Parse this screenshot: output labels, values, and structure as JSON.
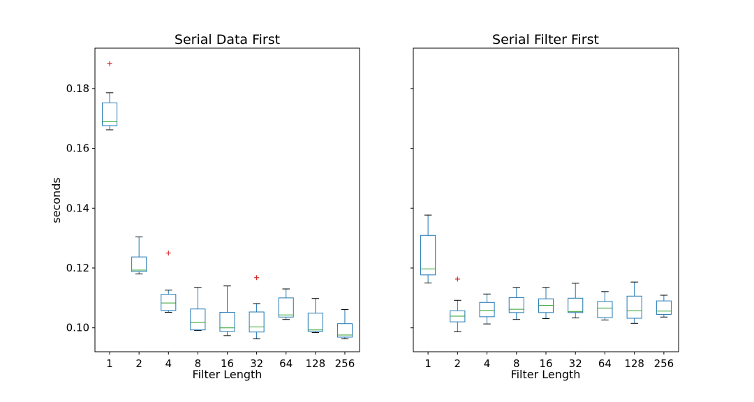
{
  "chart_data": [
    {
      "type": "box",
      "title": "Serial Data First",
      "xlabel": "Filter Length",
      "ylabel": "seconds",
      "categories": [
        "1",
        "2",
        "4",
        "8",
        "16",
        "32",
        "64",
        "128",
        "256"
      ],
      "ylim": [
        0.092,
        0.1935
      ],
      "yticks": [
        "0.10",
        "0.12",
        "0.14",
        "0.16",
        "0.18"
      ],
      "box_color": "#1f77b4",
      "median_color": "#2ca02c",
      "outlier_color": "#d62728",
      "boxes": [
        {
          "whislo": 0.1662,
          "q1": 0.1676,
          "med": 0.1689,
          "q3": 0.1752,
          "whishi": 0.1786,
          "fliers": [
            0.1883
          ]
        },
        {
          "whislo": 0.118,
          "q1": 0.1188,
          "med": 0.1193,
          "q3": 0.1237,
          "whishi": 0.1304,
          "fliers": []
        },
        {
          "whislo": 0.1052,
          "q1": 0.1058,
          "med": 0.1083,
          "q3": 0.1112,
          "whishi": 0.1126,
          "fliers": [
            0.125
          ]
        },
        {
          "whislo": 0.0991,
          "q1": 0.0993,
          "med": 0.1018,
          "q3": 0.1063,
          "whishi": 0.1135,
          "fliers": []
        },
        {
          "whislo": 0.0974,
          "q1": 0.0988,
          "med": 0.1,
          "q3": 0.1052,
          "whishi": 0.114,
          "fliers": []
        },
        {
          "whislo": 0.0963,
          "q1": 0.0986,
          "med": 0.1003,
          "q3": 0.1053,
          "whishi": 0.1081,
          "fliers": [
            0.1168
          ]
        },
        {
          "whislo": 0.1028,
          "q1": 0.1036,
          "med": 0.1043,
          "q3": 0.11,
          "whishi": 0.113,
          "fliers": []
        },
        {
          "whislo": 0.0984,
          "q1": 0.0988,
          "med": 0.0993,
          "q3": 0.1049,
          "whishi": 0.1098,
          "fliers": []
        },
        {
          "whislo": 0.0963,
          "q1": 0.0969,
          "med": 0.0976,
          "q3": 0.1014,
          "whishi": 0.1061,
          "fliers": []
        }
      ]
    },
    {
      "type": "box",
      "title": "Serial Filter First",
      "xlabel": "Filter Length",
      "ylabel": "",
      "categories": [
        "1",
        "2",
        "4",
        "8",
        "16",
        "32",
        "64",
        "128",
        "256"
      ],
      "ylim": [
        0.092,
        0.1935
      ],
      "yticks": [
        "",
        "",
        "",
        "",
        ""
      ],
      "box_color": "#1f77b4",
      "median_color": "#2ca02c",
      "outlier_color": "#d62728",
      "boxes": [
        {
          "whislo": 0.115,
          "q1": 0.1177,
          "med": 0.1197,
          "q3": 0.1309,
          "whishi": 0.1377,
          "fliers": []
        },
        {
          "whislo": 0.0987,
          "q1": 0.102,
          "med": 0.1039,
          "q3": 0.1057,
          "whishi": 0.1092,
          "fliers": [
            0.1163
          ]
        },
        {
          "whislo": 0.1013,
          "q1": 0.1037,
          "med": 0.1058,
          "q3": 0.1085,
          "whishi": 0.1113,
          "fliers": []
        },
        {
          "whislo": 0.1028,
          "q1": 0.1051,
          "med": 0.1062,
          "q3": 0.1101,
          "whishi": 0.1135,
          "fliers": []
        },
        {
          "whislo": 0.1031,
          "q1": 0.1051,
          "med": 0.1075,
          "q3": 0.1097,
          "whishi": 0.1135,
          "fliers": []
        },
        {
          "whislo": 0.1033,
          "q1": 0.1051,
          "med": 0.1054,
          "q3": 0.1099,
          "whishi": 0.1149,
          "fliers": []
        },
        {
          "whislo": 0.1026,
          "q1": 0.1034,
          "med": 0.1066,
          "q3": 0.1088,
          "whishi": 0.1121,
          "fliers": []
        },
        {
          "whislo": 0.1015,
          "q1": 0.1032,
          "med": 0.1057,
          "q3": 0.1106,
          "whishi": 0.1153,
          "fliers": []
        },
        {
          "whislo": 0.1036,
          "q1": 0.1045,
          "med": 0.1056,
          "q3": 0.109,
          "whishi": 0.1109,
          "fliers": []
        }
      ]
    }
  ]
}
